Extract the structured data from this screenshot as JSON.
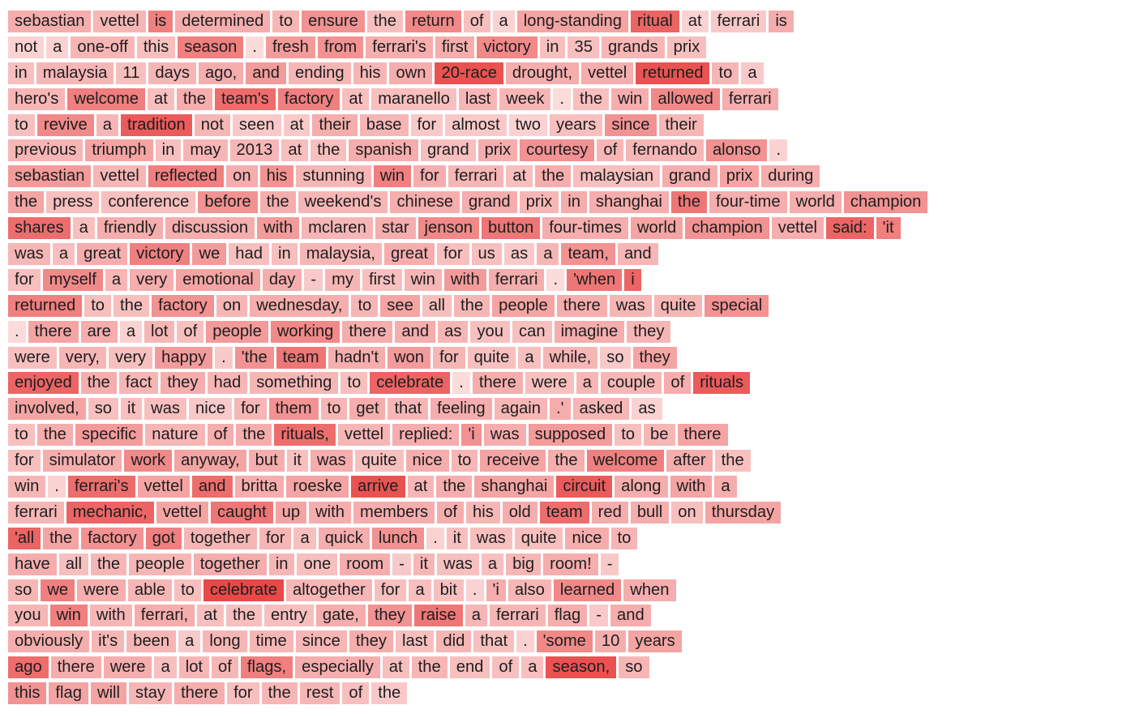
{
  "colors": {
    "low": "#fde4e4",
    "high": "#e52d2d",
    "text": "#1e1e1e",
    "background": "#ffffff"
  },
  "lines": [
    [
      [
        "sebastian",
        0.3
      ],
      [
        "vettel",
        0.25
      ],
      [
        "is",
        0.55
      ],
      [
        "determined",
        0.3
      ],
      [
        "to",
        0.25
      ],
      [
        "ensure",
        0.45
      ],
      [
        "the",
        0.2
      ],
      [
        "return",
        0.5
      ],
      [
        "of",
        0.2
      ],
      [
        "a",
        0.1
      ],
      [
        "long-standing",
        0.35
      ],
      [
        "ritual",
        0.7
      ],
      [
        "at",
        0.1
      ],
      [
        "ferrari",
        0.15
      ],
      [
        "is",
        0.3
      ]
    ],
    [
      [
        "not",
        0.1
      ],
      [
        "a",
        0.1
      ],
      [
        "one-off",
        0.25
      ],
      [
        "this",
        0.2
      ],
      [
        "season",
        0.55
      ],
      [
        ".",
        0.05
      ],
      [
        "fresh",
        0.4
      ],
      [
        "from",
        0.45
      ],
      [
        "ferrari's",
        0.3
      ],
      [
        "first",
        0.3
      ],
      [
        "victory",
        0.5
      ],
      [
        "in",
        0.2
      ],
      [
        "35",
        0.2
      ],
      [
        "grands",
        0.25
      ],
      [
        "prix",
        0.2
      ]
    ],
    [
      [
        "in",
        0.2
      ],
      [
        "malaysia",
        0.25
      ],
      [
        "11",
        0.2
      ],
      [
        "days",
        0.25
      ],
      [
        "ago,",
        0.3
      ],
      [
        "and",
        0.4
      ],
      [
        "ending",
        0.25
      ],
      [
        "his",
        0.25
      ],
      [
        "own",
        0.3
      ],
      [
        "20-race",
        0.8
      ],
      [
        "drought,",
        0.3
      ],
      [
        "vettel",
        0.3
      ],
      [
        "returned",
        0.8
      ],
      [
        "to",
        0.25
      ],
      [
        "a",
        0.15
      ]
    ],
    [
      [
        "hero's",
        0.25
      ],
      [
        "welcome",
        0.55
      ],
      [
        "at",
        0.2
      ],
      [
        "the",
        0.3
      ],
      [
        "team's",
        0.65
      ],
      [
        "factory",
        0.55
      ],
      [
        "at",
        0.2
      ],
      [
        "maranello",
        0.2
      ],
      [
        "last",
        0.25
      ],
      [
        "week",
        0.25
      ],
      [
        ".",
        0.05
      ],
      [
        "the",
        0.2
      ],
      [
        "win",
        0.3
      ],
      [
        "allowed",
        0.5
      ],
      [
        "ferrari",
        0.3
      ]
    ],
    [
      [
        "to",
        0.2
      ],
      [
        "revive",
        0.5
      ],
      [
        "a",
        0.25
      ],
      [
        "tradition",
        0.75
      ],
      [
        "not",
        0.25
      ],
      [
        "seen",
        0.15
      ],
      [
        "at",
        0.15
      ],
      [
        "their",
        0.3
      ],
      [
        "base",
        0.25
      ],
      [
        "for",
        0.15
      ],
      [
        "almost",
        0.15
      ],
      [
        "two",
        0.1
      ],
      [
        "years",
        0.2
      ],
      [
        "since",
        0.45
      ],
      [
        "their",
        0.25
      ]
    ],
    [
      [
        "previous",
        0.25
      ],
      [
        "triumph",
        0.35
      ],
      [
        "in",
        0.2
      ],
      [
        "may",
        0.25
      ],
      [
        "2013",
        0.25
      ],
      [
        "at",
        0.2
      ],
      [
        "the",
        0.2
      ],
      [
        "spanish",
        0.3
      ],
      [
        "grand",
        0.2
      ],
      [
        "prix",
        0.3
      ],
      [
        "courtesy",
        0.45
      ],
      [
        "of",
        0.25
      ],
      [
        "fernando",
        0.25
      ],
      [
        "alonso",
        0.45
      ],
      [
        ".",
        0.1
      ]
    ],
    [
      [
        "sebastian",
        0.4
      ],
      [
        "vettel",
        0.25
      ],
      [
        "reflected",
        0.55
      ],
      [
        "on",
        0.3
      ],
      [
        "his",
        0.45
      ],
      [
        "stunning",
        0.25
      ],
      [
        "win",
        0.55
      ],
      [
        "for",
        0.3
      ],
      [
        "ferrari",
        0.25
      ],
      [
        "at",
        0.2
      ],
      [
        "the",
        0.3
      ],
      [
        "malaysian",
        0.2
      ],
      [
        "grand",
        0.3
      ],
      [
        "prix",
        0.35
      ],
      [
        "during",
        0.3
      ]
    ],
    [
      [
        "the",
        0.35
      ],
      [
        "press",
        0.2
      ],
      [
        "conference",
        0.2
      ],
      [
        "before",
        0.45
      ],
      [
        "the",
        0.3
      ],
      [
        "weekend's",
        0.25
      ],
      [
        "chinese",
        0.3
      ],
      [
        "grand",
        0.3
      ],
      [
        "prix",
        0.25
      ],
      [
        "in",
        0.3
      ],
      [
        "shanghai",
        0.3
      ],
      [
        "the",
        0.6
      ],
      [
        "four-time",
        0.3
      ],
      [
        "world",
        0.3
      ],
      [
        "champion",
        0.45
      ]
    ],
    [
      [
        "shares",
        0.65
      ],
      [
        "a",
        0.2
      ],
      [
        "friendly",
        0.3
      ],
      [
        "discussion",
        0.3
      ],
      [
        "with",
        0.4
      ],
      [
        "mclaren",
        0.25
      ],
      [
        "star",
        0.3
      ],
      [
        "jenson",
        0.5
      ],
      [
        "button",
        0.6
      ],
      [
        "four-times",
        0.3
      ],
      [
        "world",
        0.35
      ],
      [
        "champion",
        0.45
      ],
      [
        "vettel",
        0.3
      ],
      [
        "said:",
        0.7
      ],
      [
        "'it",
        0.55
      ]
    ],
    [
      [
        "was",
        0.25
      ],
      [
        "a",
        0.2
      ],
      [
        "great",
        0.3
      ],
      [
        "victory",
        0.55
      ],
      [
        "we",
        0.4
      ],
      [
        "had",
        0.2
      ],
      [
        "in",
        0.2
      ],
      [
        "malaysia,",
        0.25
      ],
      [
        "great",
        0.3
      ],
      [
        "for",
        0.2
      ],
      [
        "us",
        0.2
      ],
      [
        "as",
        0.15
      ],
      [
        "a",
        0.25
      ],
      [
        "team,",
        0.45
      ],
      [
        "and",
        0.25
      ]
    ],
    [
      [
        "for",
        0.2
      ],
      [
        "myself",
        0.5
      ],
      [
        "a",
        0.25
      ],
      [
        "very",
        0.3
      ],
      [
        "emotional",
        0.35
      ],
      [
        "day",
        0.3
      ],
      [
        "-",
        0.15
      ],
      [
        "my",
        0.25
      ],
      [
        "first",
        0.2
      ],
      [
        "win",
        0.25
      ],
      [
        "with",
        0.4
      ],
      [
        "ferrari",
        0.3
      ],
      [
        ".",
        0.05
      ],
      [
        "'when",
        0.6
      ],
      [
        "i",
        0.7
      ]
    ],
    [
      [
        "returned",
        0.55
      ],
      [
        "to",
        0.2
      ],
      [
        "the",
        0.2
      ],
      [
        "factory",
        0.45
      ],
      [
        "on",
        0.25
      ],
      [
        "wednesday,",
        0.3
      ],
      [
        "to",
        0.25
      ],
      [
        "see",
        0.35
      ],
      [
        "all",
        0.2
      ],
      [
        "the",
        0.25
      ],
      [
        "people",
        0.35
      ],
      [
        "there",
        0.3
      ],
      [
        "was",
        0.25
      ],
      [
        "quite",
        0.25
      ],
      [
        "special",
        0.45
      ]
    ],
    [
      [
        ".",
        0.05
      ],
      [
        "there",
        0.35
      ],
      [
        "are",
        0.3
      ],
      [
        "a",
        0.1
      ],
      [
        "lot",
        0.25
      ],
      [
        "of",
        0.2
      ],
      [
        "people",
        0.4
      ],
      [
        "working",
        0.5
      ],
      [
        "there",
        0.3
      ],
      [
        "and",
        0.3
      ],
      [
        "as",
        0.25
      ],
      [
        "you",
        0.2
      ],
      [
        "can",
        0.2
      ],
      [
        "imagine",
        0.3
      ],
      [
        "they",
        0.25
      ]
    ],
    [
      [
        "were",
        0.2
      ],
      [
        "very,",
        0.25
      ],
      [
        "very",
        0.2
      ],
      [
        "happy",
        0.4
      ],
      [
        ".",
        0.15
      ],
      [
        "'the",
        0.45
      ],
      [
        "team",
        0.6
      ],
      [
        "hadn't",
        0.3
      ],
      [
        "won",
        0.4
      ],
      [
        "for",
        0.25
      ],
      [
        "quite",
        0.2
      ],
      [
        "a",
        0.2
      ],
      [
        "while,",
        0.25
      ],
      [
        "so",
        0.15
      ],
      [
        "they",
        0.35
      ]
    ],
    [
      [
        "enjoyed",
        0.7
      ],
      [
        "the",
        0.3
      ],
      [
        "fact",
        0.25
      ],
      [
        "they",
        0.3
      ],
      [
        "had",
        0.25
      ],
      [
        "something",
        0.25
      ],
      [
        "to",
        0.2
      ],
      [
        "celebrate",
        0.7
      ],
      [
        ".",
        0.05
      ],
      [
        "there",
        0.3
      ],
      [
        "were",
        0.2
      ],
      [
        "a",
        0.25
      ],
      [
        "couple",
        0.25
      ],
      [
        "of",
        0.3
      ],
      [
        "rituals",
        0.75
      ]
    ],
    [
      [
        "involved,",
        0.35
      ],
      [
        "so",
        0.2
      ],
      [
        "it",
        0.2
      ],
      [
        "was",
        0.2
      ],
      [
        "nice",
        0.15
      ],
      [
        "for",
        0.25
      ],
      [
        "them",
        0.45
      ],
      [
        "to",
        0.25
      ],
      [
        "get",
        0.3
      ],
      [
        "that",
        0.25
      ],
      [
        "feeling",
        0.3
      ],
      [
        "again",
        0.25
      ],
      [
        ".'",
        0.3
      ],
      [
        "asked",
        0.25
      ],
      [
        "as",
        0.1
      ]
    ],
    [
      [
        "to",
        0.2
      ],
      [
        "the",
        0.3
      ],
      [
        "specific",
        0.4
      ],
      [
        "nature",
        0.25
      ],
      [
        "of",
        0.3
      ],
      [
        "the",
        0.3
      ],
      [
        "rituals,",
        0.65
      ],
      [
        "vettel",
        0.25
      ],
      [
        "replied:",
        0.3
      ],
      [
        "'i",
        0.45
      ],
      [
        "was",
        0.3
      ],
      [
        "supposed",
        0.4
      ],
      [
        "to",
        0.2
      ],
      [
        "be",
        0.25
      ],
      [
        "there",
        0.35
      ]
    ],
    [
      [
        "for",
        0.2
      ],
      [
        "simulator",
        0.3
      ],
      [
        "work",
        0.5
      ],
      [
        "anyway,",
        0.35
      ],
      [
        "but",
        0.3
      ],
      [
        "it",
        0.2
      ],
      [
        "was",
        0.3
      ],
      [
        "quite",
        0.2
      ],
      [
        "nice",
        0.3
      ],
      [
        "to",
        0.25
      ],
      [
        "receive",
        0.35
      ],
      [
        "the",
        0.3
      ],
      [
        "welcome",
        0.55
      ],
      [
        "after",
        0.3
      ],
      [
        "the",
        0.2
      ]
    ],
    [
      [
        "win",
        0.25
      ],
      [
        ".",
        0.1
      ],
      [
        "ferrari's",
        0.65
      ],
      [
        "vettel",
        0.35
      ],
      [
        "and",
        0.65
      ],
      [
        "britta",
        0.3
      ],
      [
        "roeske",
        0.35
      ],
      [
        "arrive",
        0.8
      ],
      [
        "at",
        0.25
      ],
      [
        "the",
        0.3
      ],
      [
        "shanghai",
        0.35
      ],
      [
        "circuit",
        0.75
      ],
      [
        "along",
        0.3
      ],
      [
        "with",
        0.35
      ],
      [
        "a",
        0.3
      ]
    ],
    [
      [
        "ferrari",
        0.25
      ],
      [
        "mechanic,",
        0.7
      ],
      [
        "vettel",
        0.35
      ],
      [
        "caught",
        0.6
      ],
      [
        "up",
        0.35
      ],
      [
        "with",
        0.3
      ],
      [
        "members",
        0.3
      ],
      [
        "of",
        0.3
      ],
      [
        "his",
        0.25
      ],
      [
        "old",
        0.3
      ],
      [
        "team",
        0.65
      ],
      [
        "red",
        0.3
      ],
      [
        "bull",
        0.3
      ],
      [
        "on",
        0.2
      ],
      [
        "thursday",
        0.35
      ]
    ],
    [
      [
        "'all",
        0.7
      ],
      [
        "the",
        0.35
      ],
      [
        "factory",
        0.45
      ],
      [
        "got",
        0.55
      ],
      [
        "together",
        0.25
      ],
      [
        "for",
        0.25
      ],
      [
        "a",
        0.2
      ],
      [
        "quick",
        0.3
      ],
      [
        "lunch",
        0.45
      ],
      [
        ".",
        0.1
      ],
      [
        "it",
        0.2
      ],
      [
        "was",
        0.2
      ],
      [
        "quite",
        0.2
      ],
      [
        "nice",
        0.3
      ],
      [
        "to",
        0.25
      ]
    ],
    [
      [
        "have",
        0.3
      ],
      [
        "all",
        0.2
      ],
      [
        "the",
        0.25
      ],
      [
        "people",
        0.25
      ],
      [
        "together",
        0.3
      ],
      [
        "in",
        0.25
      ],
      [
        "one",
        0.2
      ],
      [
        "room",
        0.3
      ],
      [
        "-",
        0.15
      ],
      [
        "it",
        0.25
      ],
      [
        "was",
        0.2
      ],
      [
        "a",
        0.2
      ],
      [
        "big",
        0.25
      ],
      [
        "room!",
        0.3
      ],
      [
        "-",
        0.15
      ]
    ],
    [
      [
        "so",
        0.25
      ],
      [
        "we",
        0.55
      ],
      [
        "were",
        0.3
      ],
      [
        "able",
        0.25
      ],
      [
        "to",
        0.2
      ],
      [
        "celebrate",
        0.85
      ],
      [
        "altogether",
        0.25
      ],
      [
        "for",
        0.2
      ],
      [
        "a",
        0.2
      ],
      [
        "bit",
        0.2
      ],
      [
        ".",
        0.1
      ],
      [
        "'i",
        0.3
      ],
      [
        "also",
        0.25
      ],
      [
        "learned",
        0.5
      ],
      [
        "when",
        0.3
      ]
    ],
    [
      [
        "you",
        0.25
      ],
      [
        "win",
        0.55
      ],
      [
        "with",
        0.25
      ],
      [
        "ferrari,",
        0.3
      ],
      [
        "at",
        0.2
      ],
      [
        "the",
        0.2
      ],
      [
        "entry",
        0.2
      ],
      [
        "gate,",
        0.3
      ],
      [
        "they",
        0.45
      ],
      [
        "raise",
        0.6
      ],
      [
        "a",
        0.25
      ],
      [
        "ferrari",
        0.25
      ],
      [
        "flag",
        0.3
      ],
      [
        "-",
        0.15
      ],
      [
        "and",
        0.3
      ]
    ],
    [
      [
        "obviously",
        0.3
      ],
      [
        "it's",
        0.25
      ],
      [
        "been",
        0.25
      ],
      [
        "a",
        0.15
      ],
      [
        "long",
        0.25
      ],
      [
        "time",
        0.25
      ],
      [
        "since",
        0.25
      ],
      [
        "they",
        0.3
      ],
      [
        "last",
        0.2
      ],
      [
        "did",
        0.25
      ],
      [
        "that",
        0.2
      ],
      [
        ".",
        0.1
      ],
      [
        "'some",
        0.5
      ],
      [
        "10",
        0.3
      ],
      [
        "years",
        0.35
      ]
    ],
    [
      [
        "ago",
        0.65
      ],
      [
        "there",
        0.3
      ],
      [
        "were",
        0.3
      ],
      [
        "a",
        0.2
      ],
      [
        "lot",
        0.25
      ],
      [
        "of",
        0.25
      ],
      [
        "flags,",
        0.55
      ],
      [
        "especially",
        0.3
      ],
      [
        "at",
        0.2
      ],
      [
        "the",
        0.25
      ],
      [
        "end",
        0.2
      ],
      [
        "of",
        0.2
      ],
      [
        "a",
        0.2
      ],
      [
        "season,",
        0.8
      ],
      [
        "so",
        0.25
      ]
    ],
    [
      [
        "this",
        0.45
      ],
      [
        "flag",
        0.35
      ],
      [
        "will",
        0.35
      ],
      [
        "stay",
        0.25
      ],
      [
        "there",
        0.3
      ],
      [
        "for",
        0.2
      ],
      [
        "the",
        0.25
      ],
      [
        "rest",
        0.25
      ],
      [
        "of",
        0.2
      ],
      [
        "the",
        0.15
      ]
    ]
  ]
}
